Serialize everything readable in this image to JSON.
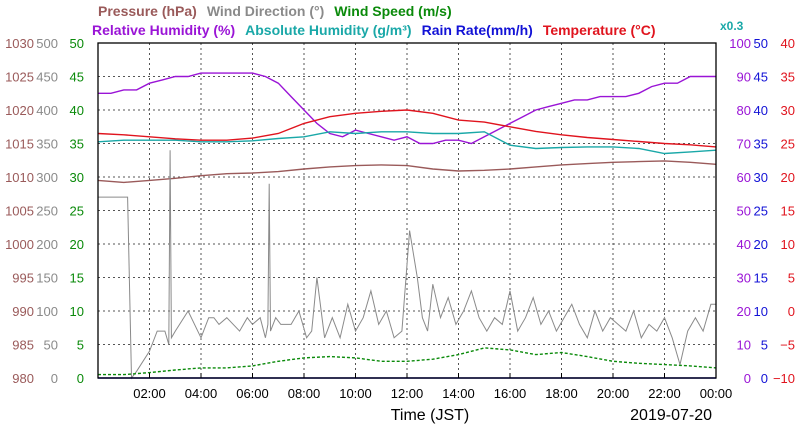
{
  "chart_data": {
    "type": "line",
    "xlabel": "Time (JST)",
    "date_label": "2019-07-20",
    "x_range": [
      "00:00",
      "24:00"
    ],
    "x_ticks": [
      "02:00",
      "04:00",
      "06:00",
      "08:00",
      "10:00",
      "12:00",
      "14:00",
      "16:00",
      "18:00",
      "20:00",
      "22:00",
      "00:00"
    ],
    "grid": true,
    "legend_row1": [
      {
        "name": "Pressure (hPa)",
        "color": "#9a5a5a"
      },
      {
        "name": "Wind Direction (°)",
        "color": "#8a8a8a"
      },
      {
        "name": "Wind Speed (m/s)",
        "color": "#0a8a0a"
      }
    ],
    "legend_row2": [
      {
        "name": "Relative Humidity (%)",
        "color": "#9a14d6"
      },
      {
        "name": "Absolute Humidity (g/m³)",
        "color": "#1aa8a8"
      },
      {
        "name": "Rain Rate(mm/h)",
        "color": "#1212d6"
      },
      {
        "name": "Temperature (°C)",
        "color": "#e0141e"
      }
    ],
    "abs_humidity_scale_note": "x0.3",
    "left_axes": [
      {
        "name": "Pressure",
        "color": "#9a5a5a",
        "ylim": [
          980,
          1030
        ],
        "ticks": [
          "980",
          "985",
          "990",
          "995",
          "1000",
          "1005",
          "1010",
          "1015",
          "1020",
          "1025",
          "1030"
        ]
      },
      {
        "name": "Wind Direction",
        "color": "#8a8a8a",
        "ylim": [
          0,
          500
        ],
        "ticks": [
          "0",
          "50",
          "100",
          "150",
          "200",
          "250",
          "300",
          "350",
          "400",
          "450",
          "500"
        ]
      },
      {
        "name": "Wind Speed",
        "color": "#0a8a0a",
        "ylim": [
          0,
          50
        ],
        "ticks": [
          "0",
          "5",
          "10",
          "15",
          "20",
          "25",
          "30",
          "35",
          "40",
          "45",
          "50"
        ]
      }
    ],
    "right_axes": [
      {
        "name": "Relative Humidity",
        "color": "#9a14d6",
        "ylim": [
          0,
          100
        ],
        "ticks": [
          "0",
          "10",
          "20",
          "30",
          "40",
          "50",
          "60",
          "70",
          "80",
          "90",
          "100"
        ]
      },
      {
        "name": "Rain Rate",
        "color": "#1212d6",
        "ylim": [
          0,
          50
        ],
        "ticks": [
          "0",
          "5",
          "10",
          "15",
          "20",
          "25",
          "30",
          "35",
          "40",
          "45",
          "50"
        ]
      },
      {
        "name": "Temperature",
        "color": "#e0141e",
        "ylim": [
          -10,
          40
        ],
        "ticks": [
          "−10",
          "−5",
          "0",
          "5",
          "10",
          "15",
          "20",
          "25",
          "30",
          "35",
          "40"
        ]
      }
    ],
    "series": [
      {
        "name": "Pressure (hPa)",
        "color": "#9a5a5a",
        "axis": "pressure",
        "x": [
          0,
          1,
          2,
          3,
          4,
          5,
          6,
          7,
          8,
          9,
          10,
          11,
          12,
          13,
          14,
          15,
          16,
          17,
          18,
          19,
          20,
          21,
          22,
          23,
          24
        ],
        "values": [
          1009.5,
          1009.2,
          1009.5,
          1009.8,
          1010.2,
          1010.5,
          1010.6,
          1010.8,
          1011.2,
          1011.5,
          1011.7,
          1011.8,
          1011.7,
          1011.2,
          1010.9,
          1011.0,
          1011.2,
          1011.5,
          1011.8,
          1012.0,
          1012.2,
          1012.3,
          1012.4,
          1012.2,
          1011.9
        ]
      },
      {
        "name": "Wind Direction (°)",
        "color": "#8a8a8a",
        "axis": "wind_direction",
        "x": [
          0,
          0.1,
          0.15,
          0.6,
          1.1,
          1.15,
          1.3,
          1.5,
          2.0,
          2.3,
          2.6,
          2.75,
          2.8,
          2.85,
          3.0,
          3.5,
          4.0,
          4.3,
          4.5,
          4.7,
          5.0,
          5.5,
          5.8,
          6.0,
          6.3,
          6.5,
          6.6,
          6.65,
          6.7,
          6.9,
          7.1,
          7.5,
          7.8,
          8.1,
          8.3,
          8.5,
          8.8,
          9.1,
          9.4,
          9.7,
          10.0,
          10.3,
          10.6,
          10.9,
          11.2,
          11.5,
          11.8,
          12.1,
          12.4,
          12.6,
          12.8,
          13.0,
          13.3,
          13.6,
          13.9,
          14.2,
          14.5,
          14.8,
          15.1,
          15.4,
          15.7,
          16.0,
          16.3,
          16.6,
          16.9,
          17.2,
          17.5,
          17.8,
          18.1,
          18.4,
          18.7,
          19.0,
          19.3,
          19.6,
          19.9,
          20.2,
          20.5,
          20.8,
          21.1,
          21.4,
          21.7,
          22.0,
          22.3,
          22.6,
          22.9,
          23.2,
          23.5,
          23.8,
          24.0
        ],
        "values": [
          270,
          270,
          270,
          270,
          270,
          270,
          0,
          10,
          40,
          70,
          70,
          50,
          340,
          60,
          70,
          100,
          60,
          90,
          90,
          80,
          90,
          70,
          90,
          80,
          90,
          60,
          80,
          290,
          70,
          90,
          80,
          80,
          100,
          60,
          70,
          150,
          60,
          90,
          60,
          110,
          70,
          90,
          130,
          80,
          100,
          60,
          70,
          220,
          150,
          90,
          70,
          140,
          90,
          120,
          80,
          100,
          130,
          90,
          70,
          90,
          80,
          130,
          70,
          90,
          120,
          80,
          100,
          70,
          90,
          110,
          80,
          60,
          100,
          70,
          90,
          80,
          70,
          100,
          60,
          80,
          70,
          90,
          60,
          20,
          70,
          90,
          70,
          110,
          110
        ]
      },
      {
        "name": "Wind Speed (m/s)",
        "color": "#0a8a0a",
        "axis": "wind_speed",
        "x": [
          0,
          1,
          2,
          3,
          4,
          5,
          6,
          7,
          8,
          9,
          10,
          11,
          12,
          13,
          14,
          15,
          16,
          17,
          18,
          19,
          20,
          21,
          22,
          23,
          24
        ],
        "values": [
          0.5,
          0.5,
          0.8,
          1.2,
          1.5,
          1.5,
          1.8,
          2.5,
          3.0,
          3.2,
          3.0,
          2.5,
          2.5,
          2.8,
          3.5,
          4.5,
          4.2,
          3.5,
          3.8,
          3.2,
          2.5,
          2.2,
          2.0,
          1.8,
          1.5
        ]
      },
      {
        "name": "Relative Humidity (%)",
        "color": "#9a14d6",
        "axis": "relative_humidity",
        "x": [
          0,
          0.5,
          1,
          1.5,
          2,
          2.5,
          3,
          3.5,
          4,
          4.5,
          5,
          5.5,
          6,
          6.5,
          7,
          7.5,
          8,
          8.5,
          9,
          9.5,
          10,
          10.5,
          11,
          11.5,
          12,
          12.5,
          13,
          13.5,
          14,
          14.5,
          15,
          15.5,
          16,
          16.5,
          17,
          17.5,
          18,
          18.5,
          19,
          19.5,
          20,
          20.5,
          21,
          21.5,
          22,
          22.5,
          23,
          23.5,
          24
        ],
        "values": [
          85,
          85,
          86,
          86,
          88,
          89,
          90,
          90,
          91,
          91,
          91,
          91,
          91,
          90,
          88,
          84,
          80,
          76,
          73,
          72,
          74,
          73,
          72,
          71,
          72,
          70,
          70,
          71,
          71,
          70,
          72,
          74,
          76,
          78,
          80,
          81,
          82,
          83,
          83,
          84,
          84,
          84,
          85,
          87,
          88,
          88,
          90,
          90,
          90
        ]
      },
      {
        "name": "Absolute Humidity (g/m³)",
        "color": "#1aa8a8",
        "axis": "relative_humidity",
        "x": [
          0,
          1,
          2,
          3,
          4,
          5,
          6,
          7,
          8,
          9,
          10,
          11,
          12,
          13,
          14,
          15,
          16,
          17,
          18,
          19,
          20,
          21,
          22,
          23,
          24
        ],
        "values": [
          70.5,
          71,
          71,
          71,
          70.5,
          70.5,
          70.8,
          71.5,
          72,
          73.5,
          73,
          73.5,
          73.5,
          73,
          73,
          73.5,
          69.5,
          68.5,
          68.8,
          69,
          69,
          68.5,
          67,
          67.5,
          68
        ]
      },
      {
        "name": "Rain Rate(mm/h)",
        "color": "#1212d6",
        "axis": "rain_rate",
        "x": [
          0,
          24
        ],
        "values": [
          0,
          0
        ]
      },
      {
        "name": "Temperature (°C)",
        "color": "#e0141e",
        "axis": "temperature",
        "x": [
          0,
          1,
          2,
          3,
          4,
          5,
          6,
          7,
          8,
          9,
          10,
          11,
          12,
          13,
          14,
          15,
          16,
          17,
          18,
          19,
          20,
          21,
          22,
          23,
          24
        ],
        "values": [
          26.5,
          26.3,
          26.0,
          25.7,
          25.5,
          25.5,
          25.8,
          26.5,
          28.0,
          29.0,
          29.5,
          29.8,
          30.0,
          29.5,
          28.5,
          28.2,
          27.5,
          26.8,
          26.3,
          25.9,
          25.6,
          25.3,
          25.0,
          24.8,
          24.5
        ]
      }
    ]
  }
}
